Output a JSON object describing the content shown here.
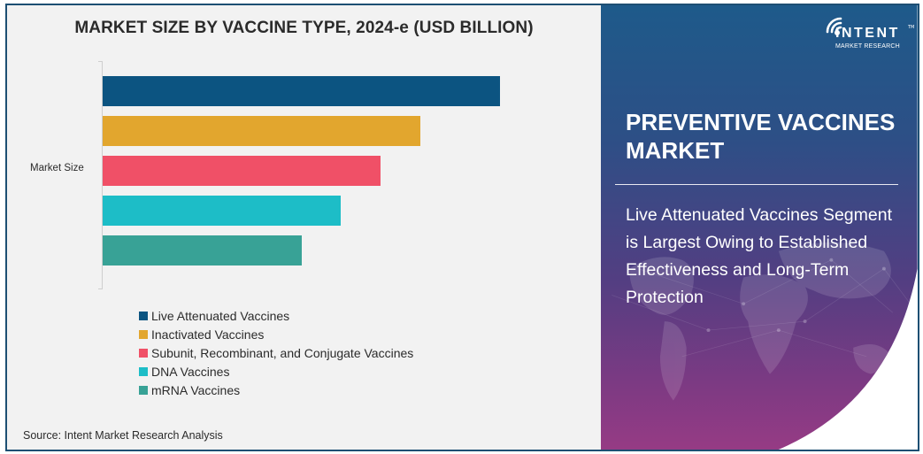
{
  "chart_data": {
    "type": "bar",
    "orientation": "horizontal",
    "title": "MARKET SIZE BY VACCINE TYPE, 2024-e (USD BILLION)",
    "xlabel": "",
    "ylabel": "",
    "categories": [
      "Market Size"
    ],
    "series": [
      {
        "name": "Live Attenuated Vaccines",
        "color": "#0c5481",
        "values": [
          100
        ]
      },
      {
        "name": "Inactivated Vaccines",
        "color": "#e2a62e",
        "values": [
          80
        ]
      },
      {
        "name": "Subunit, Recombinant, and Conjugate Vaccines",
        "color": "#f05067",
        "values": [
          70
        ]
      },
      {
        "name": "DNA Vaccines",
        "color": "#1dbdc7",
        "values": [
          60
        ]
      },
      {
        "name": "mRNA Vaccines",
        "color": "#38a296",
        "values": [
          50
        ]
      }
    ],
    "value_units": "relative (no axis values shown)",
    "grid": false,
    "legend_position": "bottom"
  },
  "chart": {
    "title": "MARKET SIZE BY VACCINE TYPE, 2024-e (USD BILLION)",
    "y_category_label": "Market Size",
    "legend": [
      {
        "label": "Live Attenuated Vaccines",
        "color": "#0c5481"
      },
      {
        "label": "Inactivated Vaccines",
        "color": "#e2a62e"
      },
      {
        "label": "Subunit, Recombinant, and Conjugate Vaccines",
        "color": "#f05067"
      },
      {
        "label": "DNA Vaccines",
        "color": "#1dbdc7"
      },
      {
        "label": "mRNA Vaccines",
        "color": "#38a296"
      }
    ],
    "source": "Source: Intent Market Research Analysis"
  },
  "sidebar": {
    "logo": {
      "main": "INTENT",
      "sub": "MARKET RESEARCH",
      "tm": "TM"
    },
    "headline": "PREVENTIVE VACCINES MARKET",
    "insight": "Live Attenuated Vaccines Segment is Largest Owing to Established Effectiveness and Long-Term Protection"
  },
  "colors": {
    "frame_border": "#1d4f73",
    "panel_top": "#1e5a8a",
    "panel_bottom": "#963b84",
    "chart_bg": "#f2f2f2"
  }
}
